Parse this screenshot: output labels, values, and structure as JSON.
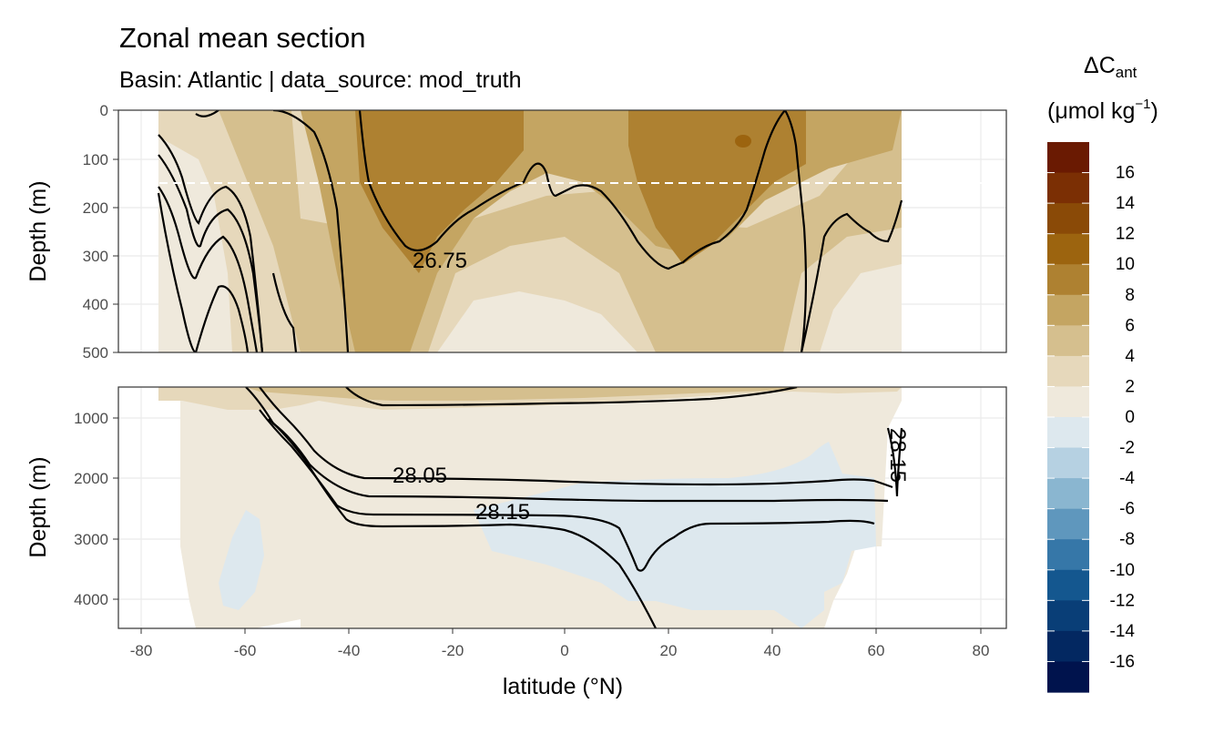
{
  "title": "Zonal mean section",
  "subtitle": "Basin: Atlantic | data_source: mod_truth",
  "chart_data": {
    "type": "heatmap",
    "xlabel": "latitude (°N)",
    "xlim": [
      -85,
      85
    ],
    "x_ticks": [
      -80,
      -60,
      -40,
      -20,
      0,
      20,
      40,
      60,
      80
    ],
    "x_tick_labels": [
      "-80",
      "-60",
      "-40",
      "-20",
      "0",
      "20",
      "40",
      "60",
      "80"
    ],
    "panels": [
      {
        "name": "upper",
        "ylabel": "Depth (m)",
        "ylim": [
          500,
          0
        ],
        "y_ticks": [
          0,
          100,
          200,
          300,
          400,
          500
        ],
        "y_tick_labels": [
          "0",
          "100",
          "200",
          "300",
          "400",
          "500"
        ],
        "reference_line_depth": 150,
        "contour_labels": [
          {
            "text": "26.75",
            "lat": -29,
            "depth": 300
          }
        ]
      },
      {
        "name": "lower",
        "ylabel": "Depth (m)",
        "ylim": [
          4500,
          500
        ],
        "y_ticks": [
          1000,
          2000,
          3000,
          4000
        ],
        "y_tick_labels": [
          "1000",
          "2000",
          "3000",
          "4000"
        ],
        "contour_labels": [
          {
            "text": "28.05",
            "lat": -30,
            "depth": 1950
          },
          {
            "text": "28.15",
            "lat": -12,
            "depth": 2540
          },
          {
            "text": "28.15",
            "lat": 64,
            "depth": 1600
          }
        ]
      }
    ],
    "legend": {
      "title": "ΔC",
      "title_sub": "ant",
      "unit_prefix": "(μmol kg",
      "unit_sup": "−1",
      "unit_suffix": ")",
      "position": "right",
      "labels": [
        "16",
        "14",
        "12",
        "10",
        "8",
        "6",
        "4",
        "2",
        "0",
        "-2",
        "-4",
        "-6",
        "-8",
        "-10",
        "-12",
        "-14",
        "-16"
      ],
      "colors": [
        "#6a1a02",
        "#7b2f04",
        "#8a4a07",
        "#9c640f",
        "#ae8131",
        "#c4a562",
        "#d5bf8e",
        "#e6d8bb",
        "#efe9dc",
        "#dde8ee",
        "#b6d1e2",
        "#8ab6d0",
        "#5f97bd",
        "#3677a8",
        "#14578f",
        "#093e77",
        "#032861",
        "#00134d"
      ]
    }
  }
}
